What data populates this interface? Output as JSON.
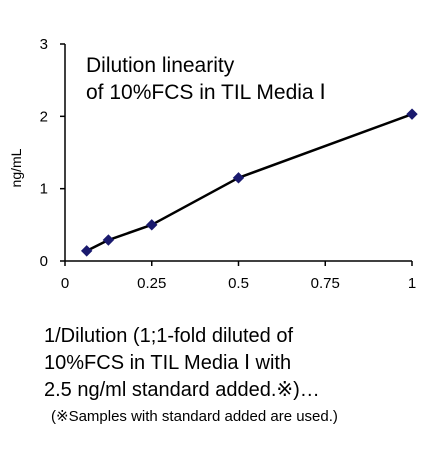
{
  "chart_data": {
    "type": "line",
    "title": [
      "Dilution linearity",
      "of  10%FCS in TIL Media Ⅰ"
    ],
    "ylabel": "ng/mL",
    "xlabel": [
      "1/Dilution (1;1-fold diluted of",
      "10%FCS  in TIL Media Ⅰ with",
      "2.5 ng/ml standard added.※)…"
    ],
    "footnote": "(※Samples with standard added are used.)",
    "xlim": [
      0,
      1
    ],
    "ylim": [
      0,
      3
    ],
    "x_ticks": [
      0,
      0.25,
      0.5,
      0.75,
      1
    ],
    "x_tick_labels": [
      "0",
      "0.25",
      "0.5",
      "0.75",
      "1"
    ],
    "y_ticks": [
      0,
      1,
      2,
      3
    ],
    "y_tick_labels": [
      "0",
      "1",
      "2",
      "3"
    ],
    "grid": false,
    "series": [
      {
        "x": [
          0.0625,
          0.125,
          0.25,
          0.5,
          1
        ],
        "y": [
          0.14,
          0.29,
          0.5,
          1.15,
          2.03
        ],
        "color": "#000000",
        "marker_color": "#1a1a6e",
        "marker": "diamond"
      }
    ]
  }
}
